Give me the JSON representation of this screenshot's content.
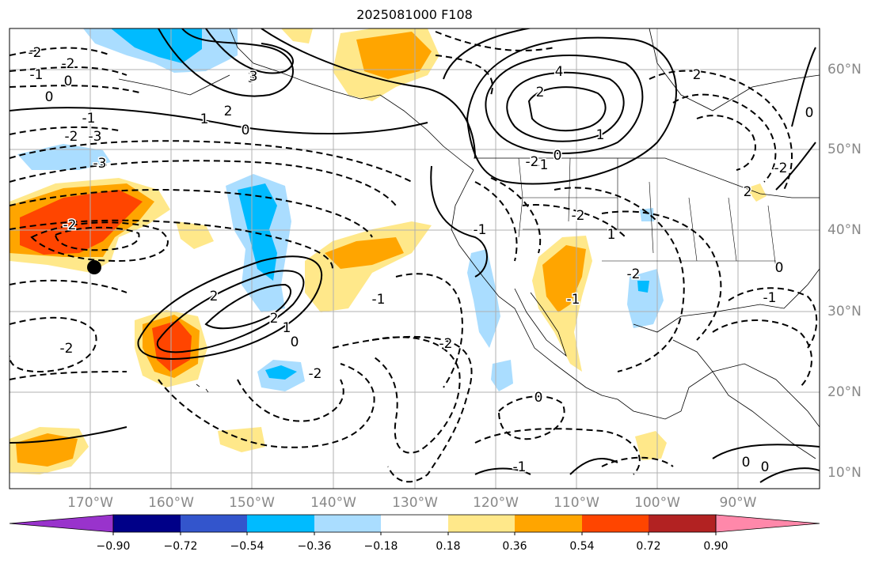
{
  "title": "2025081000 F108",
  "lon_labels": [
    "170°W",
    "160°W",
    "150°W",
    "140°W",
    "130°W",
    "120°W",
    "110°W",
    "100°W",
    "90°W"
  ],
  "lat_labels": [
    "60°N",
    "50°N",
    "40°N",
    "30°N",
    "20°N",
    "10°N"
  ],
  "colorbar": {
    "ticks": [
      "−0.90",
      "−0.72",
      "−0.54",
      "−0.36",
      "−0.18",
      "0.18",
      "0.36",
      "0.54",
      "0.72",
      "0.90"
    ],
    "colors": [
      "#9933cc",
      "#000088",
      "#3355cc",
      "#00bbff",
      "#aaddff",
      "#ffffff",
      "#ffe88a",
      "#ffa500",
      "#ff4500",
      "#b22222",
      "#ff88aa"
    ]
  },
  "contour_labels": [
    "-2",
    "-2",
    "-1",
    "0",
    "0",
    "3",
    "2",
    "1",
    "0",
    "-1",
    "-2",
    "-3",
    "-2",
    "-3",
    "2",
    "3",
    "4",
    "2",
    "1",
    "0",
    "-1",
    "-2",
    "-1",
    "-2",
    "0",
    "-2",
    "2",
    "1",
    "-1",
    "-2",
    "0",
    "-1",
    "2",
    "-2",
    "0",
    "0",
    "0",
    "-1",
    "-2",
    "-1",
    "-2",
    "1",
    "0",
    "2"
  ],
  "marker": "point"
}
